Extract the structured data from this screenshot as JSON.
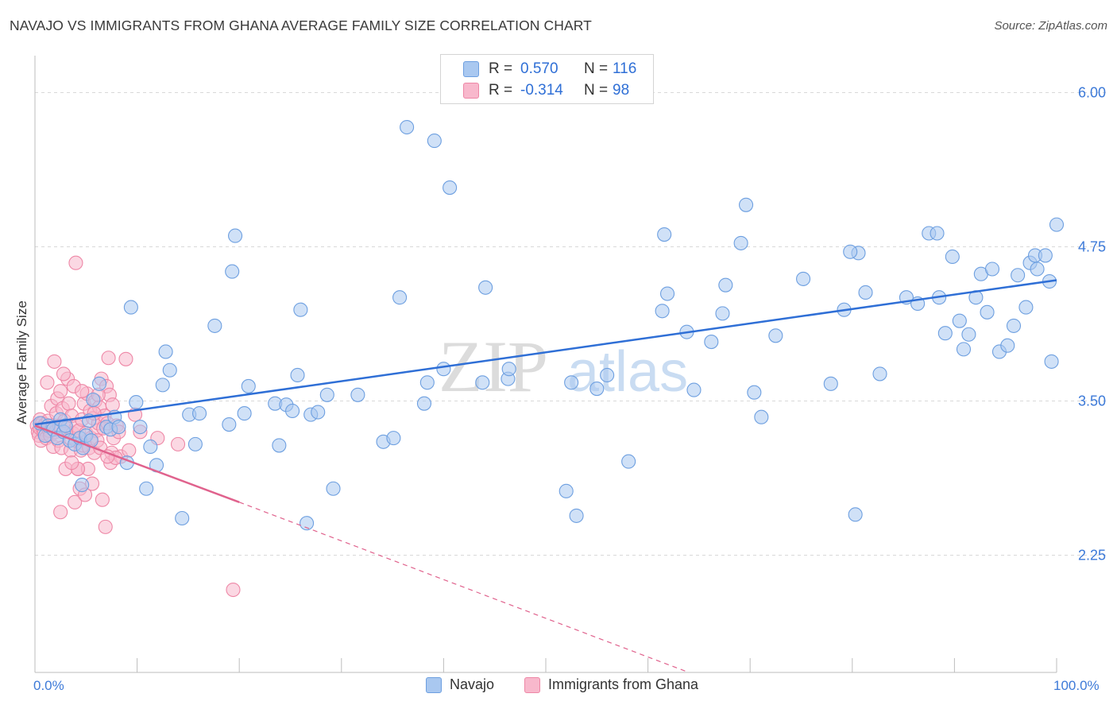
{
  "header": {
    "title": "NAVAJO VS IMMIGRANTS FROM GHANA AVERAGE FAMILY SIZE CORRELATION CHART",
    "source": "Source: ZipAtlas.com"
  },
  "legend": {
    "rows": [
      {
        "r_label": "R =",
        "r_value": "0.570",
        "n_label": "N =",
        "n_value": "116"
      },
      {
        "r_label": "R =",
        "r_value": "-0.314",
        "n_label": "N =",
        "n_value": "98"
      }
    ]
  },
  "bottom_legend": [
    "Navajo",
    "Immigrants from Ghana"
  ],
  "watermark": {
    "zip": "ZIP",
    "atlas": "atlas"
  },
  "colors": {
    "navajo_fill": "#a9c8f0",
    "navajo_stroke": "#6d9fe0",
    "navajo_line": "#2f6fd6",
    "ghana_fill": "#f8b8cc",
    "ghana_stroke": "#ee87a6",
    "ghana_line": "#e0628d",
    "tick_label": "#3d7ad8",
    "grid": "#d9d9d9"
  },
  "chart_data": {
    "type": "scatter",
    "title": "NAVAJO VS IMMIGRANTS FROM GHANA AVERAGE FAMILY SIZE CORRELATION CHART",
    "xlabel": "",
    "ylabel": "Average Family Size",
    "xlim": [
      0,
      100
    ],
    "ylim": [
      1.3,
      6.3
    ],
    "x_tick_labels": [
      "0.0%",
      "100.0%"
    ],
    "y_ticks": [
      2.25,
      3.5,
      4.75,
      6.0
    ],
    "y_tick_labels": [
      "2.25",
      "3.50",
      "4.75",
      "6.00"
    ],
    "grid": "horizontal dashed",
    "series": [
      {
        "name": "Navajo",
        "r": 0.57,
        "n": 116,
        "trend": {
          "x": [
            0,
            100
          ],
          "y": [
            3.31,
            4.48
          ]
        },
        "points": [
          [
            0.5,
            3.32
          ],
          [
            1.0,
            3.22
          ],
          [
            1.3,
            3.3
          ],
          [
            1.8,
            3.27
          ],
          [
            2.2,
            3.2
          ],
          [
            2.5,
            3.35
          ],
          [
            2.8,
            3.25
          ],
          [
            3.0,
            3.3
          ],
          [
            3.4,
            3.18
          ],
          [
            3.9,
            3.15
          ],
          [
            4.4,
            3.2
          ],
          [
            4.7,
            3.12
          ],
          [
            5.0,
            3.22
          ],
          [
            5.5,
            3.18
          ],
          [
            4.6,
            2.82
          ],
          [
            5.3,
            3.34
          ],
          [
            5.7,
            3.51
          ],
          [
            6.3,
            3.64
          ],
          [
            7.0,
            3.29
          ],
          [
            7.4,
            3.27
          ],
          [
            7.8,
            3.37
          ],
          [
            8.2,
            3.29
          ],
          [
            9.0,
            3.0
          ],
          [
            9.4,
            4.26
          ],
          [
            9.9,
            3.49
          ],
          [
            10.3,
            3.29
          ],
          [
            10.9,
            2.79
          ],
          [
            11.3,
            3.13
          ],
          [
            11.9,
            2.98
          ],
          [
            12.5,
            3.63
          ],
          [
            12.8,
            3.9
          ],
          [
            13.2,
            3.75
          ],
          [
            14.4,
            2.55
          ],
          [
            15.1,
            3.39
          ],
          [
            15.7,
            3.15
          ],
          [
            16.1,
            3.4
          ],
          [
            17.6,
            4.11
          ],
          [
            19.0,
            3.31
          ],
          [
            19.3,
            4.55
          ],
          [
            19.6,
            4.84
          ],
          [
            20.5,
            3.4
          ],
          [
            20.9,
            3.62
          ],
          [
            23.5,
            3.48
          ],
          [
            23.9,
            3.14
          ],
          [
            24.6,
            3.47
          ],
          [
            25.2,
            3.42
          ],
          [
            25.7,
            3.71
          ],
          [
            26.0,
            4.24
          ],
          [
            26.6,
            2.51
          ],
          [
            27.0,
            3.39
          ],
          [
            27.7,
            3.41
          ],
          [
            28.6,
            3.55
          ],
          [
            29.2,
            2.79
          ],
          [
            31.6,
            3.55
          ],
          [
            34.1,
            3.17
          ],
          [
            35.1,
            3.2
          ],
          [
            35.7,
            4.34
          ],
          [
            36.4,
            5.72
          ],
          [
            38.1,
            3.48
          ],
          [
            39.1,
            5.61
          ],
          [
            40.0,
            3.76
          ],
          [
            40.6,
            5.23
          ],
          [
            43.8,
            3.65
          ],
          [
            44.1,
            4.42
          ],
          [
            46.3,
            3.68
          ],
          [
            46.4,
            3.76
          ],
          [
            52.0,
            2.77
          ],
          [
            52.5,
            3.65
          ],
          [
            53.0,
            2.57
          ],
          [
            56.0,
            3.71
          ],
          [
            58.1,
            3.01
          ],
          [
            61.4,
            4.23
          ],
          [
            61.6,
            4.85
          ],
          [
            61.9,
            4.37
          ],
          [
            63.8,
            4.06
          ],
          [
            64.5,
            3.59
          ],
          [
            66.2,
            3.98
          ],
          [
            67.3,
            4.21
          ],
          [
            67.6,
            4.44
          ],
          [
            69.1,
            4.78
          ],
          [
            69.6,
            5.09
          ],
          [
            70.4,
            3.57
          ],
          [
            71.1,
            3.37
          ],
          [
            72.5,
            4.03
          ],
          [
            75.2,
            4.49
          ],
          [
            77.9,
            3.64
          ],
          [
            79.2,
            4.24
          ],
          [
            80.3,
            2.58
          ],
          [
            80.6,
            4.7
          ],
          [
            79.8,
            4.71
          ],
          [
            81.3,
            4.38
          ],
          [
            82.7,
            3.72
          ],
          [
            85.3,
            4.34
          ],
          [
            86.4,
            4.29
          ],
          [
            87.5,
            4.86
          ],
          [
            88.3,
            4.86
          ],
          [
            88.5,
            4.34
          ],
          [
            89.1,
            4.05
          ],
          [
            89.8,
            4.67
          ],
          [
            90.5,
            4.15
          ],
          [
            90.9,
            3.92
          ],
          [
            91.4,
            4.04
          ],
          [
            92.1,
            4.34
          ],
          [
            92.6,
            4.53
          ],
          [
            93.2,
            4.22
          ],
          [
            93.7,
            4.57
          ],
          [
            94.4,
            3.9
          ],
          [
            95.2,
            3.95
          ],
          [
            95.8,
            4.11
          ],
          [
            96.2,
            4.52
          ],
          [
            97.0,
            4.26
          ],
          [
            97.4,
            4.62
          ],
          [
            97.9,
            4.68
          ],
          [
            98.1,
            4.57
          ],
          [
            98.9,
            4.68
          ],
          [
            99.3,
            4.47
          ],
          [
            99.5,
            3.82
          ],
          [
            100.0,
            4.93
          ],
          [
            55.0,
            3.6
          ],
          [
            38.4,
            3.65
          ]
        ]
      },
      {
        "name": "Immigrants from Ghana",
        "r": -0.314,
        "n": 98,
        "trend": {
          "x": [
            0,
            20
          ],
          "y": [
            3.3,
            2.68
          ]
        },
        "trend_extension": {
          "x": [
            20,
            64
          ],
          "y": [
            2.68,
            1.3
          ]
        },
        "points": [
          [
            0.2,
            3.3
          ],
          [
            0.3,
            3.25
          ],
          [
            0.4,
            3.22
          ],
          [
            0.5,
            3.35
          ],
          [
            0.5,
            3.28
          ],
          [
            0.6,
            3.18
          ],
          [
            0.7,
            3.32
          ],
          [
            0.8,
            3.27
          ],
          [
            0.9,
            3.24
          ],
          [
            1.0,
            3.31
          ],
          [
            1.1,
            3.2
          ],
          [
            1.2,
            3.29
          ],
          [
            1.3,
            3.34
          ],
          [
            1.4,
            3.26
          ],
          [
            1.5,
            3.22
          ],
          [
            1.6,
            3.46
          ],
          [
            1.7,
            3.3
          ],
          [
            1.8,
            3.13
          ],
          [
            1.9,
            3.82
          ],
          [
            2.0,
            3.25
          ],
          [
            2.1,
            3.4
          ],
          [
            2.2,
            3.52
          ],
          [
            2.3,
            3.18
          ],
          [
            2.4,
            3.3
          ],
          [
            2.5,
            3.58
          ],
          [
            2.6,
            3.12
          ],
          [
            2.7,
            3.44
          ],
          [
            2.8,
            3.25
          ],
          [
            2.9,
            3.34
          ],
          [
            3.0,
            2.95
          ],
          [
            3.1,
            3.28
          ],
          [
            3.2,
            3.68
          ],
          [
            3.3,
            3.48
          ],
          [
            3.4,
            3.2
          ],
          [
            3.5,
            3.1
          ],
          [
            3.6,
            3.38
          ],
          [
            3.7,
            3.24
          ],
          [
            3.8,
            3.62
          ],
          [
            3.9,
            2.68
          ],
          [
            4.0,
            3.18
          ],
          [
            4.1,
            3.3
          ],
          [
            4.2,
            2.95
          ],
          [
            4.3,
            3.26
          ],
          [
            4.4,
            2.79
          ],
          [
            4.5,
            3.1
          ],
          [
            4.6,
            3.35
          ],
          [
            4.7,
            3.14
          ],
          [
            4.8,
            3.48
          ],
          [
            4.9,
            2.74
          ],
          [
            5.0,
            3.24
          ],
          [
            5.1,
            3.56
          ],
          [
            5.2,
            2.95
          ],
          [
            5.3,
            3.12
          ],
          [
            5.4,
            3.42
          ],
          [
            5.5,
            3.2
          ],
          [
            5.6,
            2.83
          ],
          [
            5.7,
            3.36
          ],
          [
            5.8,
            3.08
          ],
          [
            5.9,
            3.5
          ],
          [
            6.0,
            3.26
          ],
          [
            6.1,
            3.18
          ],
          [
            6.2,
            3.32
          ],
          [
            6.3,
            3.45
          ],
          [
            6.4,
            3.12
          ],
          [
            6.5,
            3.68
          ],
          [
            6.6,
            2.7
          ],
          [
            6.7,
            3.28
          ],
          [
            6.8,
            3.38
          ],
          [
            6.9,
            2.48
          ],
          [
            7.0,
            3.62
          ],
          [
            7.1,
            3.32
          ],
          [
            7.2,
            3.85
          ],
          [
            7.3,
            3.55
          ],
          [
            7.4,
            3.0
          ],
          [
            7.5,
            3.08
          ],
          [
            7.6,
            3.47
          ],
          [
            7.7,
            3.2
          ],
          [
            8.0,
            3.3
          ],
          [
            8.2,
            3.25
          ],
          [
            8.4,
            3.05
          ],
          [
            2.5,
            2.6
          ],
          [
            4.0,
            4.62
          ],
          [
            4.2,
            2.95
          ],
          [
            7.9,
            3.04
          ],
          [
            9.2,
            3.1
          ],
          [
            9.8,
            3.39
          ],
          [
            10.3,
            3.25
          ],
          [
            12.0,
            3.2
          ],
          [
            14.0,
            3.15
          ],
          [
            19.4,
            1.97
          ],
          [
            3.6,
            3.0
          ],
          [
            5.8,
            3.4
          ],
          [
            6.2,
            3.55
          ],
          [
            7.1,
            3.05
          ],
          [
            8.9,
            3.84
          ],
          [
            1.2,
            3.65
          ],
          [
            2.8,
            3.72
          ],
          [
            4.6,
            3.58
          ]
        ]
      }
    ]
  }
}
